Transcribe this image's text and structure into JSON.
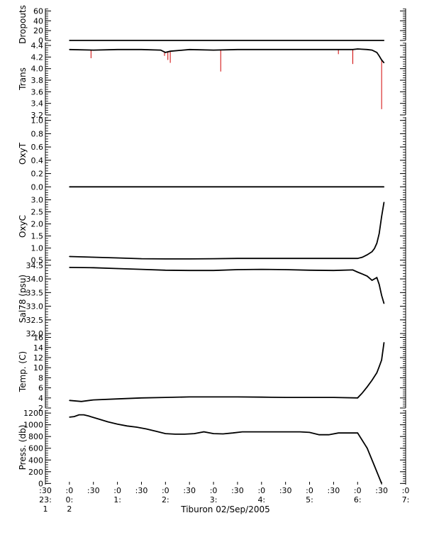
{
  "chart_data": {
    "type": "line",
    "title": "",
    "xlabel": "Tiburon 02/Sep/2005",
    "time_axis": {
      "minor_labels": [
        ":30",
        ":0",
        ":30",
        ":0",
        ":30",
        ":0",
        ":30",
        ":0",
        ":30",
        ":0",
        ":30",
        ":0",
        ":30",
        ":0",
        ":30",
        ":0"
      ],
      "hour_labels": [
        {
          "hour": "23:",
          "day": "1",
          "at": -0.5
        },
        {
          "hour": "0:",
          "day": "2",
          "at": 0
        },
        {
          "hour": "1:",
          "day": "",
          "at": 1
        },
        {
          "hour": "2:",
          "day": "",
          "at": 2
        },
        {
          "hour": "3:",
          "day": "",
          "at": 3
        },
        {
          "hour": "4:",
          "day": "",
          "at": 4
        },
        {
          "hour": "5:",
          "day": "",
          "at": 5
        },
        {
          "hour": "6:",
          "day": "",
          "at": 6
        },
        {
          "hour": "7:",
          "day": "",
          "at": 7
        }
      ],
      "xlim_hours": [
        -0.5,
        7.0
      ]
    },
    "panels": [
      {
        "id": "dropouts",
        "ylabel": "Dropouts",
        "ylim": [
          0,
          65
        ],
        "ticks": [
          0,
          20,
          40,
          60
        ],
        "tick_labels": [
          "0",
          "20",
          "40",
          "60"
        ],
        "series": [
          {
            "color": "#000000",
            "x": [
              0,
              6.55
            ],
            "y": [
              0,
              0
            ]
          }
        ]
      },
      {
        "id": "trans",
        "ylabel": "Trans",
        "ylim": [
          3.2,
          4.45
        ],
        "ticks": [
          3.2,
          3.4,
          3.6,
          3.8,
          4.0,
          4.2,
          4.4
        ],
        "tick_labels": [
          "3.2",
          "3.4",
          "3.6",
          "3.8",
          "4.0",
          "4.2",
          "4.4"
        ],
        "spikes": [
          {
            "x": 0.45,
            "y": 4.18
          },
          {
            "x": 1.98,
            "y": 4.22
          },
          {
            "x": 2.05,
            "y": 4.15
          },
          {
            "x": 2.1,
            "y": 4.1
          },
          {
            "x": 3.15,
            "y": 3.95
          },
          {
            "x": 5.6,
            "y": 4.25
          },
          {
            "x": 5.9,
            "y": 4.08
          },
          {
            "x": 6.5,
            "y": 3.3
          }
        ],
        "series": [
          {
            "color": "#000000",
            "x": [
              0,
              0.5,
              1.0,
              1.5,
              1.9,
              2.0,
              2.1,
              2.5,
              3.0,
              3.5,
              4.0,
              4.5,
              5.0,
              5.5,
              5.9,
              6.0,
              6.2,
              6.3,
              6.4,
              6.45,
              6.5,
              6.55
            ],
            "y": [
              4.33,
              4.32,
              4.33,
              4.33,
              4.32,
              4.28,
              4.3,
              4.33,
              4.32,
              4.33,
              4.33,
              4.33,
              4.33,
              4.33,
              4.33,
              4.34,
              4.33,
              4.32,
              4.28,
              4.22,
              4.15,
              4.1
            ]
          }
        ]
      },
      {
        "id": "oxyt",
        "ylabel": "OxyT",
        "ylim": [
          -0.05,
          1.05
        ],
        "ticks": [
          0.0,
          0.2,
          0.4,
          0.6,
          0.8,
          1.0
        ],
        "tick_labels": [
          "0.0",
          "0.2",
          "0.4",
          "0.6",
          "0.8",
          "1.0"
        ],
        "series": [
          {
            "color": "#000000",
            "x": [
              0,
              6.55
            ],
            "y": [
              0.0,
              0.0
            ]
          }
        ]
      },
      {
        "id": "oxyc",
        "ylabel": "OxyC",
        "ylim": [
          0.4,
          3.4
        ],
        "ticks": [
          0.5,
          1.0,
          1.5,
          2.0,
          2.5,
          3.0
        ],
        "tick_labels": [
          "0.5",
          "1.0",
          "1.5",
          "2.0",
          "2.5",
          "3.0"
        ],
        "series": [
          {
            "color": "#000000",
            "x": [
              0,
              0.5,
              1.0,
              1.5,
              2.0,
              2.5,
              3.0,
              3.5,
              4.0,
              4.5,
              5.0,
              5.5,
              6.0,
              6.1,
              6.2,
              6.3,
              6.35,
              6.4,
              6.45,
              6.5,
              6.55
            ],
            "y": [
              0.65,
              0.62,
              0.59,
              0.56,
              0.55,
              0.55,
              0.56,
              0.57,
              0.57,
              0.57,
              0.57,
              0.57,
              0.57,
              0.62,
              0.72,
              0.85,
              0.98,
              1.2,
              1.6,
              2.3,
              2.9
            ]
          }
        ]
      },
      {
        "id": "sal",
        "ylabel": "Sal78 (psu)",
        "ylim": [
          31.95,
          34.6
        ],
        "ticks": [
          32.0,
          32.5,
          33.0,
          33.5,
          34.0,
          34.5
        ],
        "tick_labels": [
          "32.0",
          "32.5",
          "33.0",
          "33.5",
          "34.0",
          "34.5"
        ],
        "series": [
          {
            "color": "#000000",
            "x": [
              0,
              0.5,
              1.0,
              1.5,
              2.0,
              2.5,
              3.0,
              3.5,
              4.0,
              4.5,
              5.0,
              5.5,
              5.9,
              6.0,
              6.1,
              6.2,
              6.3,
              6.4,
              6.45,
              6.5,
              6.55
            ],
            "y": [
              34.42,
              34.41,
              34.38,
              34.35,
              34.32,
              34.31,
              34.31,
              34.34,
              34.35,
              34.34,
              34.32,
              34.31,
              34.33,
              34.25,
              34.18,
              34.1,
              33.95,
              34.05,
              33.8,
              33.4,
              33.1
            ]
          }
        ]
      },
      {
        "id": "temp",
        "ylabel": "Temp. (C)",
        "ylim": [
          2,
          16.5
        ],
        "ticks": [
          2,
          4,
          6,
          8,
          10,
          12,
          14,
          16
        ],
        "tick_labels": [
          "2",
          "4",
          "6",
          "8",
          "10",
          "12",
          "14",
          "16"
        ],
        "series": [
          {
            "color": "#000000",
            "x": [
              0,
              0.25,
              0.5,
              1.0,
              1.5,
              2.0,
              2.5,
              3.0,
              3.5,
              4.0,
              4.5,
              5.0,
              5.5,
              6.0,
              6.1,
              6.2,
              6.3,
              6.4,
              6.45,
              6.5,
              6.55
            ],
            "y": [
              3.5,
              3.3,
              3.6,
              3.8,
              4.0,
              4.1,
              4.2,
              4.2,
              4.2,
              4.15,
              4.1,
              4.1,
              4.1,
              4.0,
              5.0,
              6.2,
              7.5,
              9.0,
              10.2,
              11.5,
              15.0
            ]
          }
        ]
      },
      {
        "id": "press",
        "ylabel": "Press. (db)",
        "ylim": [
          -20,
          1250
        ],
        "ticks": [
          0,
          200,
          400,
          600,
          800,
          1000,
          1200
        ],
        "tick_labels": [
          "0",
          "200",
          "400",
          "600",
          "800",
          "1000",
          "1200"
        ],
        "series": [
          {
            "color": "#000000",
            "x": [
              0,
              0.1,
              0.2,
              0.3,
              0.4,
              0.6,
              0.8,
              1.0,
              1.2,
              1.4,
              1.6,
              1.8,
              2.0,
              2.2,
              2.4,
              2.6,
              2.8,
              3.0,
              3.2,
              3.4,
              3.6,
              3.8,
              4.0,
              4.2,
              4.4,
              4.6,
              4.8,
              5.0,
              5.2,
              5.4,
              5.6,
              5.8,
              6.0,
              6.2,
              6.35,
              6.5
            ],
            "y": [
              1130,
              1140,
              1170,
              1170,
              1150,
              1100,
              1050,
              1010,
              980,
              960,
              930,
              890,
              850,
              840,
              840,
              850,
              880,
              850,
              845,
              860,
              880,
              880,
              880,
              880,
              880,
              880,
              880,
              870,
              830,
              830,
              860,
              860,
              860,
              600,
              300,
              0
            ]
          }
        ]
      }
    ]
  }
}
